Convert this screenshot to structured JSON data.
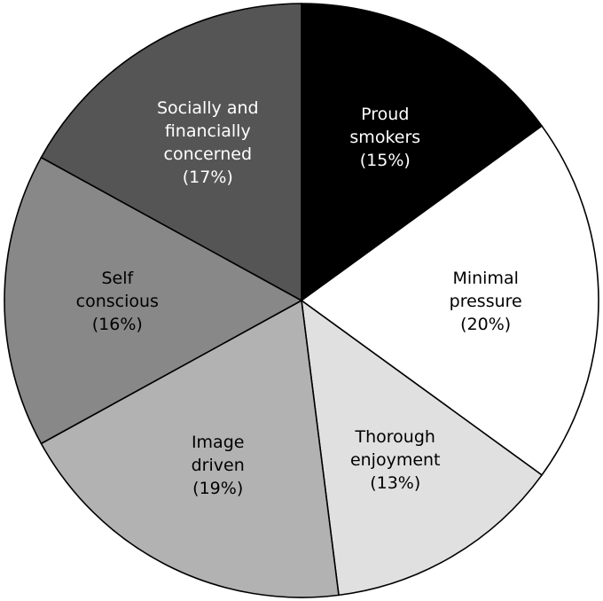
{
  "chart_data": {
    "type": "pie",
    "slices": [
      {
        "label_lines": [
          "Proud",
          "smokers",
          "(15%)"
        ],
        "value": 15,
        "color": "#000000",
        "text_color": "#ffffff"
      },
      {
        "label_lines": [
          "Minimal",
          "pressure",
          "(20%)"
        ],
        "value": 20,
        "color": "#ffffff",
        "text_color": "#000000"
      },
      {
        "label_lines": [
          "Thorough",
          "enjoyment",
          "(13%)"
        ],
        "value": 13,
        "color": "#e0e0e0",
        "text_color": "#000000"
      },
      {
        "label_lines": [
          "Image",
          "driven",
          "(19%)"
        ],
        "value": 19,
        "color": "#b2b2b2",
        "text_color": "#000000"
      },
      {
        "label_lines": [
          "Self",
          "conscious",
          "(16%)"
        ],
        "value": 16,
        "color": "#888888",
        "text_color": "#000000"
      },
      {
        "label_lines": [
          "Socially and",
          "financially",
          "concerned",
          "(17%)"
        ],
        "value": 17,
        "color": "#555555",
        "text_color": "#ffffff"
      }
    ],
    "start": "12 o'clock",
    "direction": "clockwise",
    "legend": "none"
  }
}
